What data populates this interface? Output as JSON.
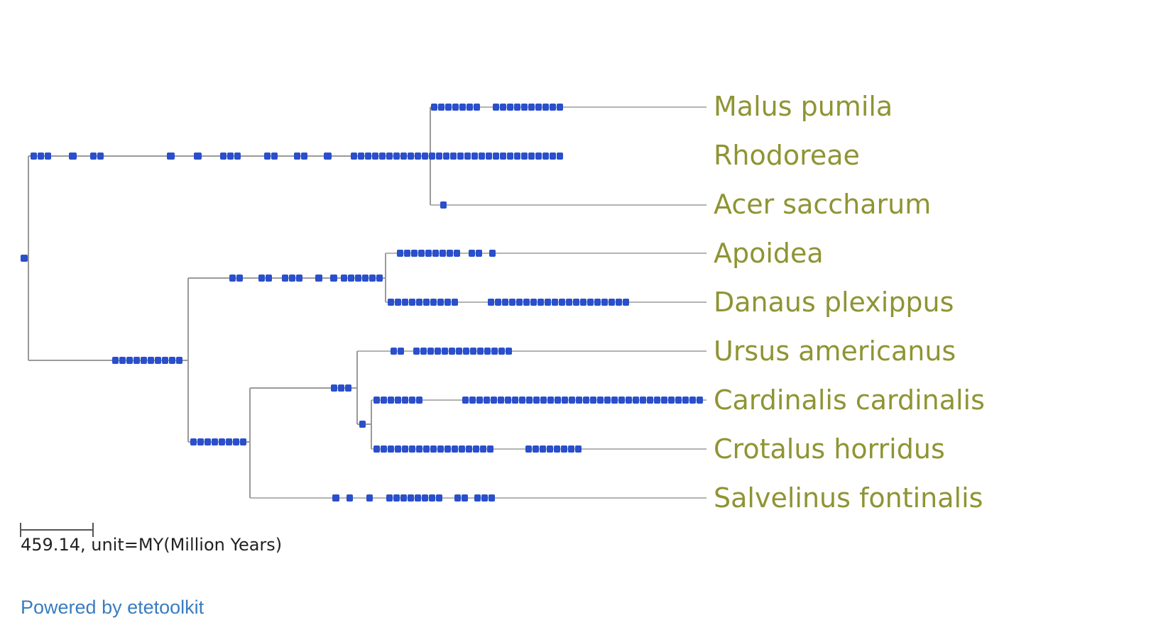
{
  "tree": {
    "taxa": [
      {
        "id": "malus",
        "label": "Malus pumila"
      },
      {
        "id": "rhodoreae",
        "label": "Rhodoreae"
      },
      {
        "id": "acer",
        "label": "Acer saccharum"
      },
      {
        "id": "apoidea",
        "label": "Apoidea"
      },
      {
        "id": "danaus",
        "label": "Danaus plexippus"
      },
      {
        "id": "ursus",
        "label": "Ursus americanus"
      },
      {
        "id": "cardinalis",
        "label": "Cardinalis cardinalis"
      },
      {
        "id": "crotalus",
        "label": "Crotalus horridus"
      },
      {
        "id": "salvelinus",
        "label": "Salvelinus fontinalis"
      }
    ],
    "topology": "(((Malus pumila,Rhodoreae,Acer saccharum)),((Apoidea,Danaus plexippus),(((Ursus americanus,(Cardinalis cardinalis,Crotalus horridus)),Salvelinus fontinalis))));",
    "branch_color": "#9a9a9a",
    "marker_color": "#2a4fcc",
    "label_color": "#8f9433"
  },
  "scale_bar": {
    "label": "459.14, unit=MY(Million Years)",
    "value": 459.14,
    "unit": "MY(Million Years)"
  },
  "footer": {
    "link_text": "Powered by etetoolkit"
  }
}
